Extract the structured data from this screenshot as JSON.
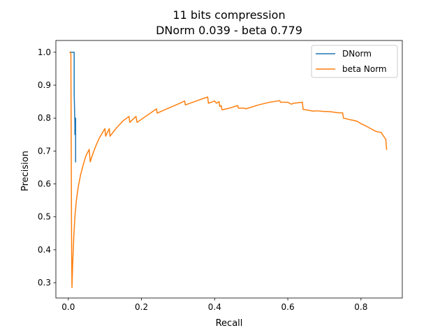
{
  "chart_data": {
    "type": "line",
    "title": "11 bits compression",
    "subtitle": "DNorm 0.039 - beta 0.779",
    "xlabel": "Recall",
    "ylabel": "Precision",
    "xlim": [
      -0.034,
      0.913
    ],
    "ylim": [
      0.2535,
      1.0357
    ],
    "xticks": [
      0.0,
      0.2,
      0.4,
      0.6,
      0.8
    ],
    "xtick_labels": [
      "0.0",
      "0.2",
      "0.4",
      "0.6",
      "0.8"
    ],
    "yticks": [
      0.3,
      0.4,
      0.5,
      0.6,
      0.7,
      0.8,
      0.9,
      1.0
    ],
    "ytick_labels": [
      "0.3",
      "0.4",
      "0.5",
      "0.6",
      "0.7",
      "0.8",
      "0.9",
      "1.0"
    ],
    "grid": false,
    "legend": "top-right",
    "series": [
      {
        "name": "DNorm",
        "color": "#1f77b4",
        "x": [
          0.005,
          0.007,
          0.009,
          0.011,
          0.013,
          0.015,
          0.016,
          0.016,
          0.018,
          0.018,
          0.02,
          0.02,
          0.02,
          0.02
        ],
        "y": [
          1.0,
          1.0,
          1.0,
          1.0,
          1.0,
          1.0,
          1.0,
          0.875,
          0.78,
          0.75,
          0.8,
          0.75,
          0.7,
          0.667
        ]
      },
      {
        "name": "beta Norm",
        "color": "#ff7f0e",
        "x": [
          0.005,
          0.007,
          0.008,
          0.009,
          0.01,
          0.012,
          0.015,
          0.018,
          0.022,
          0.027,
          0.033,
          0.04,
          0.048,
          0.057,
          0.06,
          0.065,
          0.075,
          0.085,
          0.1,
          0.102,
          0.112,
          0.114,
          0.13,
          0.15,
          0.166,
          0.168,
          0.185,
          0.188,
          0.241,
          0.243,
          0.28,
          0.305,
          0.318,
          0.32,
          0.35,
          0.37,
          0.381,
          0.383,
          0.4,
          0.405,
          0.412,
          0.414,
          0.418,
          0.42,
          0.44,
          0.463,
          0.465,
          0.482,
          0.485,
          0.52,
          0.55,
          0.578,
          0.58,
          0.6,
          0.61,
          0.615,
          0.64,
          0.642,
          0.65,
          0.66,
          0.67,
          0.68,
          0.7,
          0.71,
          0.72,
          0.73,
          0.74,
          0.75,
          0.752,
          0.76,
          0.77,
          0.78,
          0.79,
          0.8,
          0.81,
          0.82,
          0.83,
          0.84,
          0.85,
          0.855,
          0.86,
          0.865,
          0.868,
          0.87
        ],
        "y": [
          1.0,
          0.995,
          0.7,
          0.4,
          0.285,
          0.36,
          0.44,
          0.5,
          0.55,
          0.59,
          0.625,
          0.655,
          0.685,
          0.705,
          0.667,
          0.685,
          0.715,
          0.74,
          0.768,
          0.745,
          0.768,
          0.745,
          0.768,
          0.792,
          0.805,
          0.787,
          0.805,
          0.787,
          0.828,
          0.815,
          0.833,
          0.845,
          0.852,
          0.84,
          0.852,
          0.86,
          0.864,
          0.845,
          0.852,
          0.845,
          0.85,
          0.835,
          0.838,
          0.825,
          0.83,
          0.838,
          0.83,
          0.83,
          0.828,
          0.84,
          0.848,
          0.853,
          0.848,
          0.848,
          0.842,
          0.845,
          0.848,
          0.826,
          0.825,
          0.823,
          0.821,
          0.822,
          0.82,
          0.82,
          0.819,
          0.817,
          0.816,
          0.816,
          0.8,
          0.798,
          0.795,
          0.793,
          0.79,
          0.783,
          0.778,
          0.772,
          0.766,
          0.76,
          0.757,
          0.757,
          0.748,
          0.74,
          0.735,
          0.705
        ]
      }
    ]
  }
}
